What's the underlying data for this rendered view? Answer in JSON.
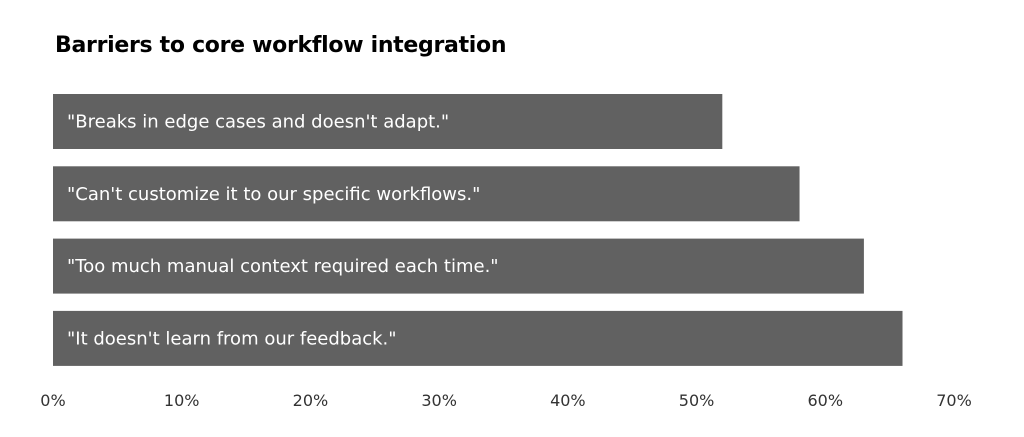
{
  "chart_data": {
    "type": "bar",
    "orientation": "horizontal",
    "title": "Barriers to core workflow integration",
    "xlabel": "",
    "ylabel": "",
    "categories": [
      "\"Breaks in edge cases and doesn't adapt.\"",
      "\"Can't customize it to our specific workflows.\"",
      "\"Too much manual context required each time.\"",
      "\"It doesn't learn from our feedback.\""
    ],
    "values": [
      52,
      58,
      63,
      66
    ],
    "value_unit": "%",
    "xlim": [
      0,
      70
    ],
    "x_ticks": [
      "0%",
      "10%",
      "20%",
      "30%",
      "40%",
      "50%",
      "60%",
      "70%"
    ],
    "grid": false,
    "legend": "none",
    "category_labels_inside_bars": true,
    "colors": {
      "bar": "#616161",
      "bar_label": "#ffffff",
      "tick_label": "#333333",
      "title": "#000000"
    }
  }
}
